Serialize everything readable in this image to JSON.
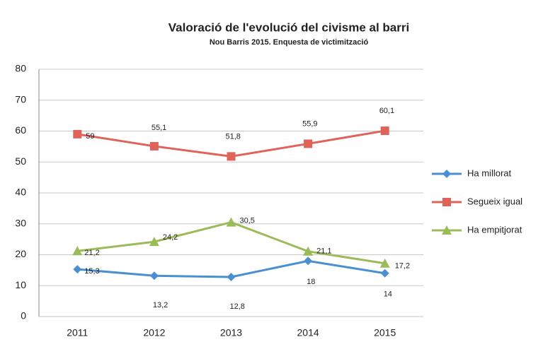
{
  "chart_data": {
    "type": "line",
    "title": "Valoració de l'evolució del civisme al barri",
    "subtitle": "Nou Barris 2015. Enquesta de victimització",
    "categories": [
      "2011",
      "2012",
      "2013",
      "2014",
      "2015"
    ],
    "series": [
      {
        "name": "Ha millorat",
        "color": "#4a8fd0",
        "marker": "diamond",
        "values": [
          15.3,
          13.2,
          12.8,
          18,
          14
        ],
        "value_labels": [
          "15,3",
          "13,2",
          "12,8",
          "18",
          "14"
        ]
      },
      {
        "name": "Segueix igual",
        "color": "#e0635a",
        "marker": "square",
        "values": [
          59,
          55.1,
          51.8,
          55.9,
          60.1
        ],
        "value_labels": [
          "59",
          "55,1",
          "51,8",
          "55,9",
          "60,1"
        ]
      },
      {
        "name": "Ha empitjorat",
        "color": "#9bbb59",
        "marker": "triangle",
        "values": [
          21.2,
          24.2,
          30.5,
          21.1,
          17.2
        ],
        "value_labels": [
          "21,2",
          "24,2",
          "30,5",
          "21,1",
          "17,2"
        ]
      }
    ],
    "ylim": [
      0,
      80
    ],
    "yticks": [
      0,
      10,
      20,
      30,
      40,
      50,
      60,
      70,
      80
    ],
    "grid": true,
    "legend": "right"
  }
}
